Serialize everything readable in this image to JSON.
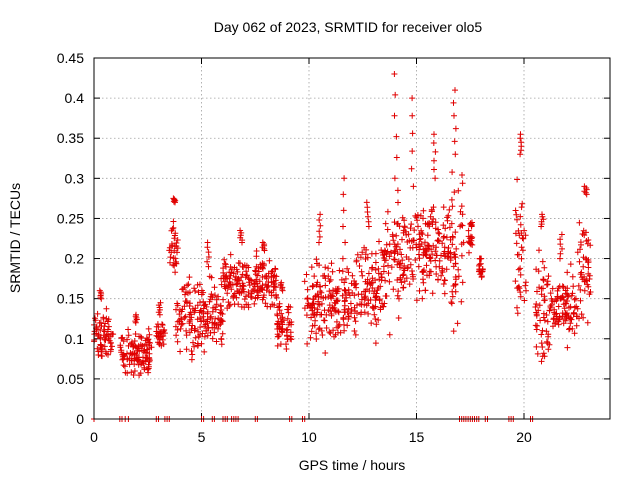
{
  "chart_data": {
    "type": "scatter",
    "title": "Day 062 of 2023, SRMTID for receiver olo5",
    "xlabel": "GPS time / hours",
    "ylabel": "SRMTID / TECUs",
    "xlim": [
      0,
      24
    ],
    "ylim": [
      0,
      0.45
    ],
    "x_ticks": [
      0,
      5,
      10,
      15,
      20
    ],
    "x_tick_labels": [
      "0",
      "5",
      "10",
      "15",
      "20"
    ],
    "y_ticks": [
      0,
      0.05,
      0.1,
      0.15,
      0.2,
      0.25,
      0.3,
      0.35,
      0.4,
      0.45
    ],
    "y_tick_labels": [
      "0",
      "0.05",
      "0.1",
      "0.15",
      "0.2",
      "0.25",
      "0.3",
      "0.35",
      "0.4",
      "0.45"
    ],
    "grid": true,
    "marker": "+",
    "color": "#e00000",
    "segments": [
      {
        "start": 0.0,
        "end": 0.9,
        "low": 0.06,
        "high": 0.15,
        "peak": 0.16
      },
      {
        "start": 1.2,
        "end": 2.7,
        "low": 0.045,
        "high": 0.12,
        "peak": 0.13
      },
      {
        "start": 2.9,
        "end": 3.3,
        "low": 0.08,
        "high": 0.13,
        "peak": 0.145
      },
      {
        "start": 3.5,
        "end": 3.9,
        "low": 0.17,
        "high": 0.27,
        "peak": 0.275
      },
      {
        "start": 3.8,
        "end": 6.0,
        "low": 0.07,
        "high": 0.19,
        "peak": 0.22
      },
      {
        "start": 6.0,
        "end": 7.6,
        "low": 0.12,
        "high": 0.22,
        "peak": 0.235
      },
      {
        "start": 7.6,
        "end": 8.5,
        "low": 0.13,
        "high": 0.21,
        "peak": 0.22
      },
      {
        "start": 8.5,
        "end": 9.2,
        "low": 0.07,
        "high": 0.16,
        "peak": 0.17
      },
      {
        "start": 9.8,
        "end": 11.0,
        "low": 0.065,
        "high": 0.22,
        "peak": 0.255
      },
      {
        "start": 11.0,
        "end": 12.2,
        "low": 0.09,
        "high": 0.2,
        "peak": 0.3
      },
      {
        "start": 12.2,
        "end": 13.5,
        "low": 0.09,
        "high": 0.24,
        "peak": 0.27
      },
      {
        "start": 13.5,
        "end": 14.3,
        "low": 0.1,
        "high": 0.3,
        "peak": 0.43
      },
      {
        "start": 14.3,
        "end": 15.5,
        "low": 0.13,
        "high": 0.29,
        "peak": 0.4
      },
      {
        "start": 15.5,
        "end": 16.6,
        "low": 0.13,
        "high": 0.3,
        "peak": 0.355
      },
      {
        "start": 16.6,
        "end": 17.2,
        "low": 0.07,
        "high": 0.33,
        "peak": 0.41
      },
      {
        "start": 17.4,
        "end": 17.6,
        "low": 0.2,
        "high": 0.24,
        "peak": 0.245
      },
      {
        "start": 17.9,
        "end": 18.1,
        "low": 0.17,
        "high": 0.2,
        "peak": 0.2
      },
      {
        "start": 19.6,
        "end": 20.1,
        "low": 0.09,
        "high": 0.33,
        "peak": 0.355
      },
      {
        "start": 20.5,
        "end": 21.3,
        "low": 0.03,
        "high": 0.24,
        "peak": 0.255
      },
      {
        "start": 21.3,
        "end": 22.5,
        "low": 0.08,
        "high": 0.2,
        "peak": 0.23
      },
      {
        "start": 22.5,
        "end": 23.1,
        "low": 0.09,
        "high": 0.28,
        "peak": 0.29
      }
    ],
    "zero_markers": [
      0.0,
      1.2,
      1.3,
      1.45,
      1.6,
      2.9,
      3.0,
      3.3,
      3.4,
      3.5,
      5.0,
      5.1,
      5.5,
      5.6,
      6.0,
      6.1,
      6.2,
      6.4,
      6.5,
      6.6,
      6.7,
      7.5,
      7.6,
      9.1,
      9.2,
      9.7,
      9.8,
      17.0,
      17.1,
      17.2,
      17.3,
      17.4,
      17.5,
      17.6,
      17.7,
      17.8,
      17.9,
      18.2,
      18.3,
      19.3,
      19.4,
      19.5,
      20.3,
      20.4
    ]
  }
}
